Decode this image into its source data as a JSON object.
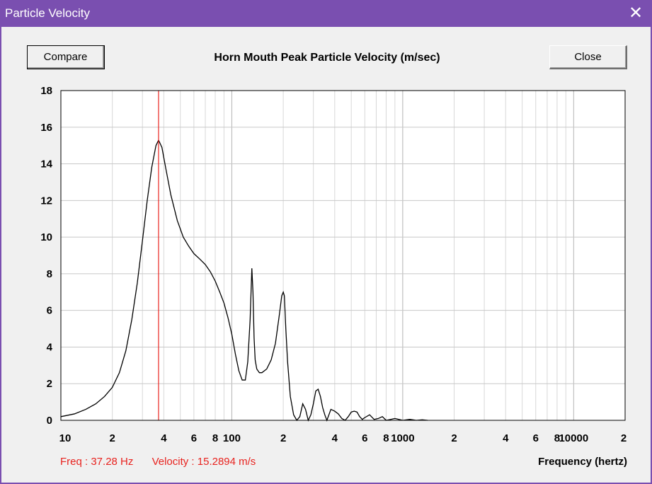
{
  "window": {
    "title": "Particle Velocity",
    "close_glyph": "✕"
  },
  "buttons": {
    "compare_label": "Compare",
    "close_label": "Close"
  },
  "status": {
    "freq": "Freq : 37.28 Hz",
    "velocity": "Velocity : 15.2894 m/s"
  },
  "colors": {
    "titlebar": "#7a4fb0",
    "curve": "#000000",
    "cursor": "#e8231f",
    "grid": "#c8c8c8"
  },
  "chart_data": {
    "type": "line",
    "title": "Horn Mouth Peak Particle Velocity (m/sec)",
    "xlabel": "Frequency (hertz)",
    "ylabel": "",
    "x_scale": "log",
    "xlim": [
      10,
      20000
    ],
    "ylim": [
      0,
      18
    ],
    "grid": true,
    "yticks": [
      0,
      2,
      4,
      6,
      8,
      10,
      12,
      14,
      16,
      18
    ],
    "xtick_labels": [
      {
        "x": 10,
        "label": "10"
      },
      {
        "x": 20,
        "label": "2"
      },
      {
        "x": 40,
        "label": "4"
      },
      {
        "x": 60,
        "label": "6"
      },
      {
        "x": 80,
        "label": "8"
      },
      {
        "x": 100,
        "label": "100"
      },
      {
        "x": 200,
        "label": "2"
      },
      {
        "x": 400,
        "label": "4"
      },
      {
        "x": 600,
        "label": "6"
      },
      {
        "x": 800,
        "label": "8"
      },
      {
        "x": 1000,
        "label": "1000"
      },
      {
        "x": 2000,
        "label": "2"
      },
      {
        "x": 4000,
        "label": "4"
      },
      {
        "x": 6000,
        "label": "6"
      },
      {
        "x": 8000,
        "label": "8"
      },
      {
        "x": 10000,
        "label": "10000"
      },
      {
        "x": 20000,
        "label": "2"
      }
    ],
    "cursor_x": 37.28,
    "series": [
      {
        "x": [
          10,
          12,
          14,
          16,
          18,
          20,
          22,
          24,
          26,
          28,
          30,
          32,
          34,
          36,
          37.28,
          39,
          41,
          44,
          48,
          52,
          56,
          60,
          65,
          70,
          75,
          80,
          85,
          90,
          95,
          100,
          105,
          110,
          115,
          120,
          124,
          128,
          131,
          133,
          135,
          137,
          140,
          145,
          150,
          160,
          170,
          180,
          190,
          196,
          200,
          203,
          207,
          212,
          220,
          230,
          240,
          250,
          260,
          270,
          280,
          290,
          300,
          310,
          320,
          330,
          340,
          350,
          360,
          380,
          400,
          420,
          440,
          460,
          480,
          500,
          520,
          540,
          560,
          580,
          600,
          640,
          680,
          720,
          760,
          800,
          850,
          900,
          950,
          1000,
          1100,
          1200,
          1300,
          1400
        ],
        "y": [
          0.2,
          0.35,
          0.6,
          0.9,
          1.3,
          1.8,
          2.6,
          3.8,
          5.5,
          7.5,
          9.8,
          12.0,
          13.8,
          15.0,
          15.29,
          14.9,
          13.8,
          12.3,
          10.9,
          10.0,
          9.5,
          9.1,
          8.8,
          8.5,
          8.1,
          7.6,
          7.0,
          6.4,
          5.6,
          4.7,
          3.6,
          2.7,
          2.2,
          2.2,
          3.2,
          5.5,
          8.3,
          7.0,
          4.5,
          3.3,
          2.8,
          2.6,
          2.6,
          2.8,
          3.3,
          4.2,
          5.8,
          6.8,
          7.0,
          6.8,
          5.0,
          3.2,
          1.3,
          0.3,
          0.0,
          0.2,
          0.9,
          0.6,
          0.0,
          0.3,
          0.9,
          1.6,
          1.7,
          1.3,
          0.7,
          0.3,
          0.0,
          0.6,
          0.5,
          0.35,
          0.1,
          0.0,
          0.2,
          0.45,
          0.5,
          0.45,
          0.2,
          0.05,
          0.15,
          0.3,
          0.05,
          0.1,
          0.2,
          0.0,
          0.05,
          0.1,
          0.05,
          0.0,
          0.05,
          0.0,
          0.03,
          0.0
        ]
      }
    ]
  }
}
